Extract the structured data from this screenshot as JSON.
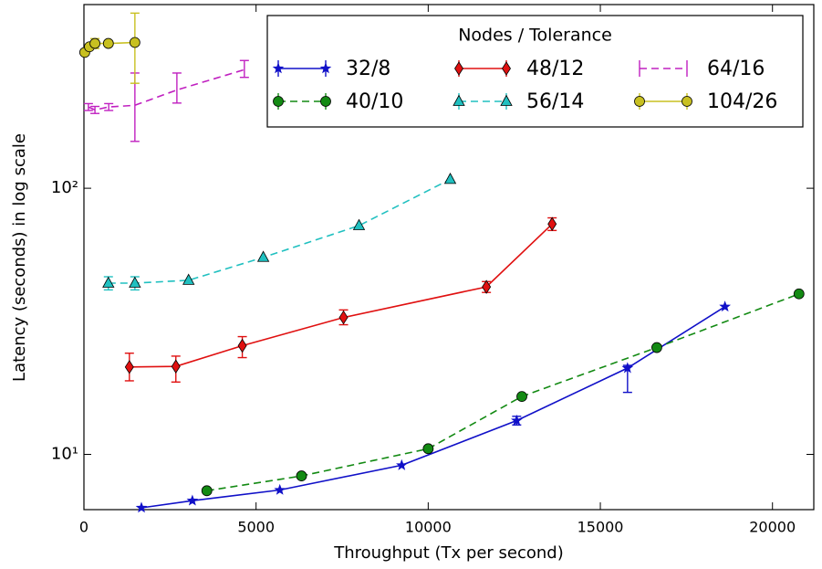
{
  "chart_data": {
    "type": "line",
    "xlabel": "Throughput (Tx per second)",
    "ylabel": "Latency (seconds) in log scale",
    "xlim": [
      0,
      21200
    ],
    "xticks": [
      0,
      5000,
      10000,
      15000,
      20000
    ],
    "ylim": [
      6.2,
      490
    ],
    "yscale": "log",
    "yticks": [
      {
        "value": 10,
        "label": "10¹"
      },
      {
        "value": 100,
        "label": "10²"
      }
    ],
    "legend_title": "Nodes / Tolerance",
    "legend_loc": "upper right",
    "series": [
      {
        "name": "32/8",
        "color": "#1010c8",
        "marker": "star",
        "linestyle": "solid",
        "x": [
          1670,
          3150,
          5690,
          9230,
          12570,
          15790,
          18620
        ],
        "values": [
          6.3,
          6.7,
          7.35,
          9.1,
          13.4,
          21.1,
          35.9
        ],
        "yerr_lower": [
          null,
          null,
          null,
          null,
          0.5,
          4,
          null
        ],
        "yerr_upper": [
          null,
          null,
          null,
          null,
          0.5,
          0.5,
          null
        ]
      },
      {
        "name": "40/10",
        "color": "#138a13",
        "marker": "circle",
        "linestyle": "dashed",
        "x": [
          3570,
          6320,
          10000,
          12720,
          16640,
          20770
        ],
        "values": [
          7.3,
          8.3,
          10.5,
          16.5,
          25.2,
          40.1
        ],
        "yerr_lower": [
          null,
          null,
          null,
          null,
          null,
          null
        ],
        "yerr_upper": [
          null,
          null,
          null,
          null,
          null,
          null
        ]
      },
      {
        "name": "48/12",
        "color": "#e01010",
        "marker": "diamond",
        "linestyle": "solid",
        "x": [
          1320,
          2670,
          4600,
          7540,
          11690,
          13600
        ],
        "values": [
          21.3,
          21.4,
          25.6,
          32.7,
          42.6,
          73.4
        ],
        "yerr_lower": [
          2.4,
          2.7,
          2.5,
          2,
          2,
          4
        ],
        "yerr_upper": [
          2.7,
          2,
          2.1,
          2.2,
          2,
          4
        ]
      },
      {
        "name": "56/14",
        "color": "#20c0c0",
        "marker": "triangle",
        "linestyle": "dashed",
        "x": [
          710,
          1480,
          3040,
          5210,
          7990,
          10640
        ],
        "values": [
          44,
          44,
          45.1,
          55,
          72.4,
          108
        ],
        "yerr_lower": [
          2.5,
          2.5,
          null,
          null,
          null,
          null
        ],
        "yerr_upper": [
          2.5,
          2.5,
          null,
          null,
          null,
          null
        ]
      },
      {
        "name": "64/16",
        "color": "#c020c0",
        "marker": "none",
        "linestyle": "dashed",
        "x": [
          130,
          320,
          720,
          1480,
          2700,
          4660
        ],
        "values": [
          202,
          197,
          202,
          205,
          234,
          279
        ],
        "yerr_lower": [
          6,
          6,
          6,
          55,
          25,
          18
        ],
        "yerr_upper": [
          6,
          6,
          6,
          66,
          37,
          23
        ]
      },
      {
        "name": "104/26",
        "color": "#c8c020",
        "marker": "circle",
        "linestyle": "solid",
        "x": [
          24,
          160,
          320,
          710,
          1480
        ],
        "values": [
          324,
          340,
          350,
          350,
          353
        ],
        "yerr_lower": [
          null,
          null,
          15,
          null,
          105
        ],
        "yerr_upper": [
          null,
          null,
          15,
          null,
          102
        ]
      }
    ]
  }
}
